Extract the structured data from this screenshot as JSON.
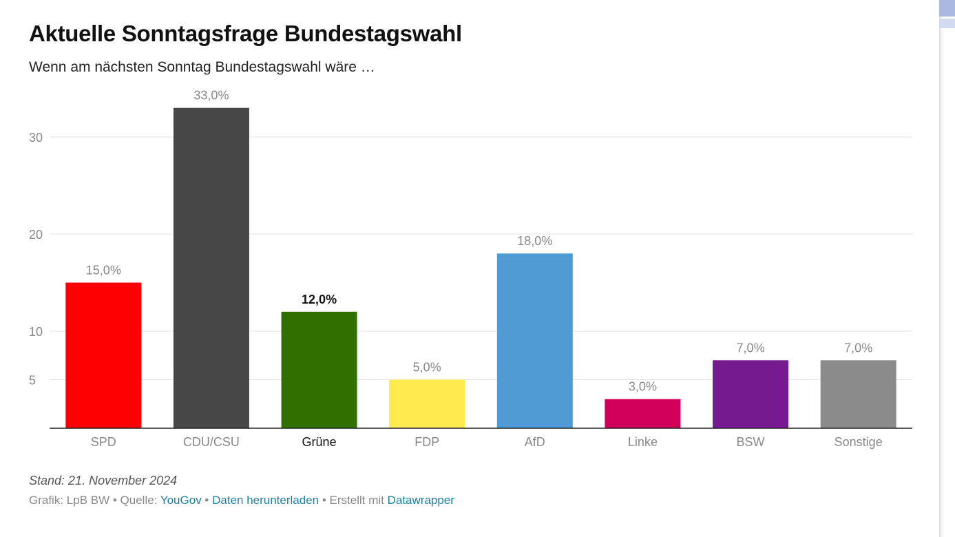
{
  "title": "Aktuelle Sonntagsfrage Bundestagswahl",
  "subtitle": "Wenn am nächsten Sonntag Bundestagswahl wäre …",
  "notes": "Stand: 21. November 2024",
  "footer": {
    "grafik": "Grafik: LpB BW",
    "sep": " • ",
    "quelle_label": "Quelle: ",
    "quelle_link": "YouGov",
    "download_link": "Daten herunterladen",
    "erstellt_label": "Erstellt mit ",
    "datawrapper_link": "Datawrapper",
    "link_color": "#1d81a2"
  },
  "chart_data": {
    "type": "bar",
    "categories": [
      "SPD",
      "CDU/CSU",
      "Grüne",
      "FDP",
      "AfD",
      "Linke",
      "BSW",
      "Sonstige"
    ],
    "values": [
      15.0,
      33.0,
      12.0,
      5.0,
      18.0,
      3.0,
      7.0,
      7.0
    ],
    "value_labels": [
      "15,0%",
      "33,0%",
      "12,0%",
      "5,0%",
      "18,0%",
      "3,0%",
      "7,0%",
      "7,0%"
    ],
    "colors": [
      "#ff0000",
      "#474747",
      "#307000",
      "#ffeb4f",
      "#519bd4",
      "#d2005a",
      "#761a8f",
      "#8b8b8b"
    ],
    "highlighted": "Grüne",
    "yticks": [
      5,
      10,
      20,
      30
    ],
    "ylim": [
      0,
      33
    ],
    "grid": true,
    "title": "Aktuelle Sonntagsfrage Bundestagswahl"
  }
}
